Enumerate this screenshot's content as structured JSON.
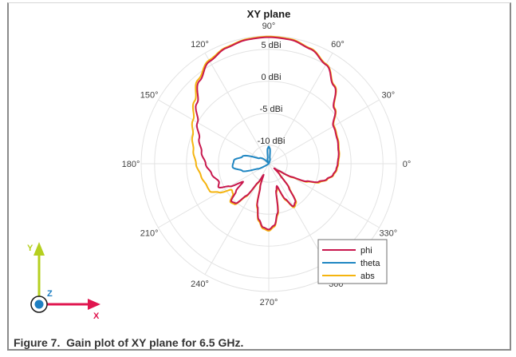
{
  "figure": {
    "caption": "Figure 7.  Gain plot of XY plane for 6.5 GHz."
  },
  "axes_icon": {
    "y_label": "Y",
    "x_label": "X",
    "z_label": "Z",
    "y_color": "#b5cf1f",
    "x_color": "#e0164f",
    "z_color": "#1e7fc2"
  },
  "chart_data": {
    "type": "polar-line",
    "title": "XY plane",
    "angular_ticks": [
      "0°",
      "30°",
      "60°",
      "90°",
      "120°",
      "150°",
      "180°",
      "210°",
      "240°",
      "270°",
      "300°",
      "330°"
    ],
    "radial_ticks": [
      "-10 dBi",
      "-5 dBi",
      "0 dBi",
      "5 dBi"
    ],
    "radial_tick_values": [
      -10,
      -5,
      0,
      5
    ],
    "rlim": [
      -12.9,
      7.1
    ],
    "angle_direction": "counterclockwise, 0° at right",
    "legend": {
      "position": "lower right",
      "entries": [
        "phi",
        "theta",
        "abs"
      ]
    },
    "series": [
      {
        "name": "phi",
        "color": "#c8174d",
        "points": [
          [
            0,
            -2.1
          ],
          [
            10,
            -1.8
          ],
          [
            20,
            -1.5
          ],
          [
            30,
            -1.2
          ],
          [
            40,
            0.5
          ],
          [
            50,
            3.0
          ],
          [
            60,
            5.0
          ],
          [
            70,
            6.2
          ],
          [
            80,
            6.8
          ],
          [
            90,
            6.9
          ],
          [
            100,
            6.8
          ],
          [
            110,
            6.4
          ],
          [
            120,
            5.6
          ],
          [
            130,
            4.0
          ],
          [
            140,
            1.8
          ],
          [
            150,
            0.0
          ],
          [
            160,
            -1.3
          ],
          [
            170,
            -2.2
          ],
          [
            180,
            -3.0
          ],
          [
            190,
            -3.8
          ],
          [
            200,
            -4.6
          ],
          [
            205,
            -4.2
          ],
          [
            210,
            -5.8
          ],
          [
            215,
            -8.0
          ],
          [
            220,
            -6.2
          ],
          [
            225,
            -4.6
          ],
          [
            230,
            -4.8
          ],
          [
            235,
            -6.8
          ],
          [
            240,
            -9.5
          ],
          [
            245,
            -11.0
          ],
          [
            250,
            -9.0
          ],
          [
            255,
            -6.0
          ],
          [
            260,
            -4.0
          ],
          [
            265,
            -2.9
          ],
          [
            270,
            -2.6
          ],
          [
            275,
            -3.2
          ],
          [
            280,
            -5.0
          ],
          [
            285,
            -8.5
          ],
          [
            290,
            -9.2
          ],
          [
            295,
            -6.8
          ],
          [
            300,
            -5.2
          ],
          [
            305,
            -5.6
          ],
          [
            310,
            -8.0
          ],
          [
            315,
            -10.5
          ],
          [
            320,
            -11.8
          ],
          [
            325,
            -11.0
          ],
          [
            330,
            -8.8
          ],
          [
            335,
            -6.4
          ],
          [
            340,
            -4.6
          ],
          [
            345,
            -3.5
          ],
          [
            350,
            -2.7
          ],
          [
            355,
            -2.3
          ],
          [
            360,
            -2.1
          ]
        ]
      },
      {
        "name": "theta",
        "color": "#1f86c2",
        "points": [
          [
            0,
            -12.9
          ],
          [
            60,
            -12.9
          ],
          [
            80,
            -12.0
          ],
          [
            86,
            -10.5
          ],
          [
            90,
            -10.2
          ],
          [
            94,
            -10.5
          ],
          [
            100,
            -12.0
          ],
          [
            120,
            -12.9
          ],
          [
            150,
            -11.2
          ],
          [
            165,
            -8.6
          ],
          [
            175,
            -7.4
          ],
          [
            185,
            -7.2
          ],
          [
            195,
            -8.6
          ],
          [
            205,
            -11.0
          ],
          [
            215,
            -12.9
          ],
          [
            360,
            -12.9
          ]
        ]
      },
      {
        "name": "abs",
        "color": "#f5b40f",
        "points": [
          [
            0,
            -2.0
          ],
          [
            10,
            -1.7
          ],
          [
            20,
            -1.4
          ],
          [
            30,
            -1.1
          ],
          [
            40,
            0.6
          ],
          [
            50,
            3.1
          ],
          [
            60,
            5.1
          ],
          [
            70,
            6.3
          ],
          [
            80,
            6.9
          ],
          [
            90,
            7.0
          ],
          [
            100,
            6.9
          ],
          [
            110,
            6.5
          ],
          [
            120,
            5.8
          ],
          [
            130,
            4.3
          ],
          [
            140,
            2.3
          ],
          [
            150,
            0.8
          ],
          [
            160,
            -0.2
          ],
          [
            170,
            -0.9
          ],
          [
            180,
            -1.5
          ],
          [
            190,
            -2.1
          ],
          [
            200,
            -2.6
          ],
          [
            205,
            -2.7
          ],
          [
            210,
            -3.9
          ],
          [
            215,
            -5.8
          ],
          [
            220,
            -5.6
          ],
          [
            225,
            -4.4
          ],
          [
            230,
            -4.6
          ],
          [
            235,
            -6.6
          ],
          [
            240,
            -9.3
          ],
          [
            245,
            -10.8
          ],
          [
            250,
            -8.8
          ],
          [
            255,
            -5.8
          ],
          [
            260,
            -3.8
          ],
          [
            265,
            -2.7
          ],
          [
            270,
            -2.4
          ],
          [
            275,
            -3.0
          ],
          [
            280,
            -4.8
          ],
          [
            285,
            -8.3
          ],
          [
            290,
            -9.0
          ],
          [
            295,
            -6.6
          ],
          [
            300,
            -5.0
          ],
          [
            305,
            -5.4
          ],
          [
            310,
            -7.8
          ],
          [
            315,
            -10.3
          ],
          [
            320,
            -11.6
          ],
          [
            325,
            -10.8
          ],
          [
            330,
            -8.6
          ],
          [
            335,
            -6.2
          ],
          [
            340,
            -4.4
          ],
          [
            345,
            -3.4
          ],
          [
            350,
            -2.6
          ],
          [
            355,
            -2.2
          ],
          [
            360,
            -2.0
          ]
        ]
      }
    ]
  }
}
